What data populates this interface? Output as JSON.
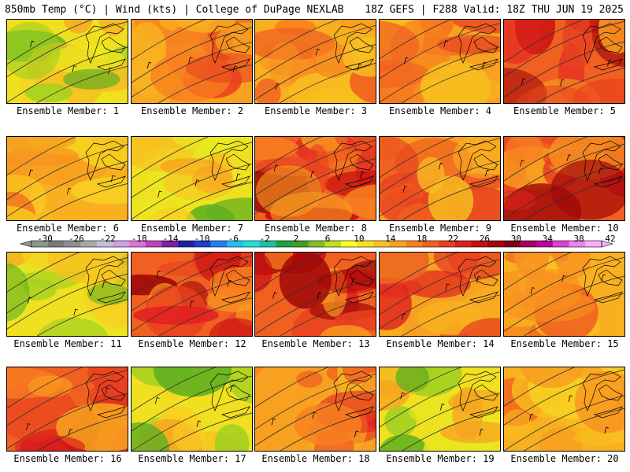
{
  "header": {
    "left": "850mb Temp (°C) | Wind (kts) | College of DuPage NEXLAB",
    "right": "18Z GEFS | F288 Valid: 18Z THU JUN 19 2025"
  },
  "member_prefix": "Ensemble Member: ",
  "members": [
    {
      "label": "Ensemble Member: 1",
      "scheme": "cool"
    },
    {
      "label": "Ensemble Member: 2",
      "scheme": "warm"
    },
    {
      "label": "Ensemble Member: 3",
      "scheme": "mild"
    },
    {
      "label": "Ensemble Member: 4",
      "scheme": "warm"
    },
    {
      "label": "Ensemble Member: 5",
      "scheme": "hot"
    },
    {
      "label": "Ensemble Member: 6",
      "scheme": "mild"
    },
    {
      "label": "Ensemble Member: 7",
      "scheme": "cool"
    },
    {
      "label": "Ensemble Member: 8",
      "scheme": "hot"
    },
    {
      "label": "Ensemble Member: 9",
      "scheme": "warm"
    },
    {
      "label": "Ensemble Member: 10",
      "scheme": "hot"
    },
    {
      "label": "Ensemble Member: 11",
      "scheme": "cool"
    },
    {
      "label": "Ensemble Member: 12",
      "scheme": "hot"
    },
    {
      "label": "Ensemble Member: 13",
      "scheme": "hot"
    },
    {
      "label": "Ensemble Member: 14",
      "scheme": "warm"
    },
    {
      "label": "Ensemble Member: 15",
      "scheme": "mild"
    },
    {
      "label": "Ensemble Member: 16",
      "scheme": "hot"
    },
    {
      "label": "Ensemble Member: 17",
      "scheme": "cool"
    },
    {
      "label": "Ensemble Member: 18",
      "scheme": "warm"
    },
    {
      "label": "Ensemble Member: 19",
      "scheme": "cool"
    },
    {
      "label": "Ensemble Member: 20",
      "scheme": "mild"
    }
  ],
  "colorbar": {
    "labels": [
      "-30",
      "-26",
      "-22",
      "-18",
      "-14",
      "-10",
      "-6",
      "-2",
      "2",
      "6",
      "10",
      "14",
      "18",
      "22",
      "26",
      "30",
      "34",
      "38",
      "42"
    ],
    "colors": [
      "#8c9a8c",
      "#7a7a7a",
      "#8e8e8e",
      "#a8a8a8",
      "#c0c0d8",
      "#d0a0e0",
      "#e070e0",
      "#c040c0",
      "#8020a0",
      "#2020a0",
      "#1a40d0",
      "#2080f0",
      "#20c0f0",
      "#20e0e0",
      "#20c0a0",
      "#20a040",
      "#40a020",
      "#80c020",
      "#c0e020",
      "#ffff20",
      "#f8e020",
      "#f8c020",
      "#f8a020",
      "#f88020",
      "#f06020",
      "#e84020",
      "#e02020",
      "#c81010",
      "#a00808",
      "#800010",
      "#a00060",
      "#c000a0",
      "#e040d0",
      "#f080f0",
      "#f8b0f8"
    ]
  },
  "schemes": {
    "cool": [
      "#f0e020",
      "#f8d020",
      "#e8e820",
      "#a0d020",
      "#60b020",
      "#f8c020",
      "#f8a020"
    ],
    "mild": [
      "#f8b020",
      "#f8a020",
      "#f89020",
      "#f8c020",
      "#f8d020",
      "#f88020",
      "#f06020"
    ],
    "warm": [
      "#f8a020",
      "#f88020",
      "#f06020",
      "#e84020",
      "#f8b020",
      "#e02020",
      "#f8c020"
    ],
    "hot": [
      "#f06020",
      "#e84020",
      "#e02020",
      "#c81010",
      "#f88020",
      "#a00808",
      "#f8a020"
    ]
  }
}
